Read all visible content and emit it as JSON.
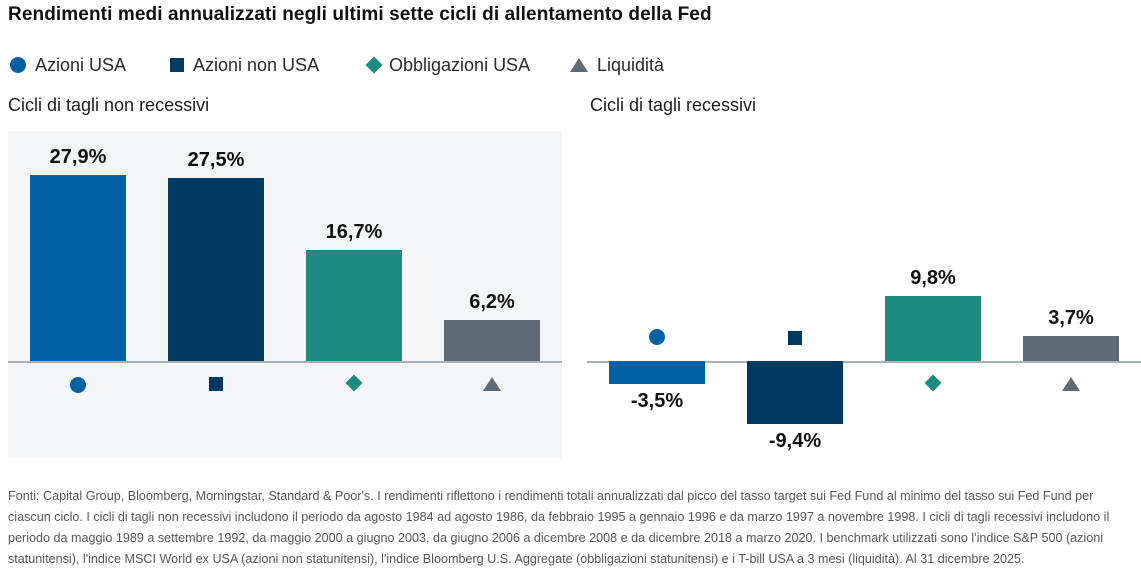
{
  "title": "Rendimenti medi annualizzati negli ultimi sette cicli di allentamento della Fed",
  "legend": {
    "items": [
      {
        "label": "Azioni USA",
        "marker": "circle",
        "color": "#0061a5"
      },
      {
        "label": "Azioni non USA",
        "marker": "square",
        "color": "#003a63"
      },
      {
        "label": "Obbligazioni USA",
        "marker": "diamond",
        "color": "#1e8a82"
      },
      {
        "label": "Liquidità",
        "marker": "triangle",
        "color": "#5d6b77"
      }
    ]
  },
  "colors": {
    "azioni_usa": "#0061a5",
    "azioni_non_usa": "#003a63",
    "obbligazioni_usa": "#1e8a82",
    "liquidita": "#5d6b77",
    "panel_bg": "#f3f5f6",
    "axis": "#a9b0b6"
  },
  "chart_data": [
    {
      "type": "bar",
      "title": "Cicli di tagli non recessivi",
      "categories": [
        "Azioni USA",
        "Azioni non USA",
        "Obbligazioni USA",
        "Liquidità"
      ],
      "values": [
        27.9,
        27.5,
        16.7,
        6.2
      ],
      "value_labels": [
        "27,9%",
        "27,5%",
        "16,7%",
        "6,2%"
      ],
      "series_colors": [
        "#0061a5",
        "#003a63",
        "#1e8a82",
        "#5d6b77"
      ],
      "markers": [
        "circle",
        "square",
        "diamond",
        "triangle"
      ],
      "panel_bg": "#f3f5f6",
      "ylim": [
        -12,
        32
      ],
      "grid": false,
      "legend_position": "top"
    },
    {
      "type": "bar",
      "title": "Cicli di tagli recessivi",
      "categories": [
        "Azioni USA",
        "Azioni non USA",
        "Obbligazioni USA",
        "Liquidità"
      ],
      "values": [
        -3.5,
        -9.4,
        9.8,
        3.7
      ],
      "value_labels": [
        "-3,5%",
        "-9,4%",
        "9,8%",
        "3,7%"
      ],
      "series_colors": [
        "#0061a5",
        "#003a63",
        "#1e8a82",
        "#5d6b77"
      ],
      "markers": [
        "circle",
        "square",
        "diamond",
        "triangle"
      ],
      "panel_bg": "#ffffff",
      "ylim": [
        -12,
        32
      ],
      "grid": false,
      "legend_position": "top"
    }
  ],
  "footnote": "Fonti: Capital Group, Bloomberg, Morningstar, Standard & Poor's. I rendimenti riflettono i rendimenti totali annualizzati dal picco del tasso target sui Fed Fund al minimo del tasso sui Fed Fund per ciascun ciclo. I cicli di tagli non recessivi includono il periodo da agosto 1984 ad agosto 1986, da febbraio 1995 a gennaio 1996 e da marzo 1997 a novembre 1998. I cicli di tagli recessivi includono il periodo da maggio 1989 a settembre 1992, da maggio 2000 a giugno 2003, da giugno 2006 a dicembre 2008 e da dicembre 2018 a marzo 2020. I benchmark utilizzati sono l'indice S&P 500 (azioni statunitensi), l'indice MSCI World ex USA (azioni non statunitensi), l'indice Bloomberg U.S. Aggregate (obbligazioni statunitensi) e i T-bill USA a 3 mesi (liquidità). Al 31 dicembre 2025."
}
